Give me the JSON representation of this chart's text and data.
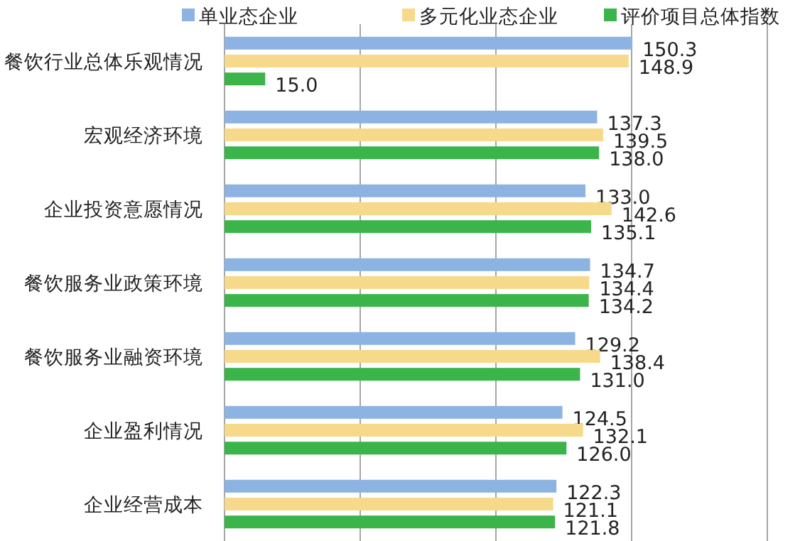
{
  "chart_data": {
    "type": "bar",
    "orientation": "horizontal",
    "categories": [
      "餐饮行业总体乐观情况",
      "宏观经济环境",
      "企业投资意愿情况",
      "餐饮服务业政策环境",
      "餐饮服务业融资环境",
      "企业盈利情况",
      "企业经营成本"
    ],
    "series": [
      {
        "name": "单业态企业",
        "color": "#8db3e2",
        "values": [
          150.3,
          137.3,
          133.0,
          134.7,
          129.2,
          124.5,
          122.3
        ],
        "value_labels": [
          "150.3",
          "137.3",
          "133.0",
          "134.7",
          "129.2",
          "124.5",
          "122.3"
        ]
      },
      {
        "name": "多元化业态企业",
        "color": "#f6d98a",
        "values": [
          148.9,
          139.5,
          142.6,
          134.4,
          138.4,
          132.1,
          121.1
        ],
        "value_labels": [
          "148.9",
          "139.5",
          "142.6",
          "134.4",
          "138.4",
          "132.1",
          "121.1"
        ]
      },
      {
        "name": "评价项目总体指数",
        "color": "#3bb44a",
        "values": [
          15.0,
          138.0,
          135.1,
          134.2,
          131.0,
          126.0,
          121.8
        ],
        "value_labels": [
          "15.0",
          "138.0",
          "135.1",
          "134.2",
          "131.0",
          "126.0",
          "121.8"
        ]
      }
    ],
    "xlim": [
      0,
      200
    ],
    "xticks": [
      {
        "value": 0,
        "label": null
      },
      {
        "value": 50,
        "label": null
      },
      {
        "value": 100,
        "label": null
      },
      {
        "value": 150,
        "label": null
      },
      {
        "value": 200,
        "label": null
      }
    ],
    "grid": "x",
    "legend": "top"
  }
}
